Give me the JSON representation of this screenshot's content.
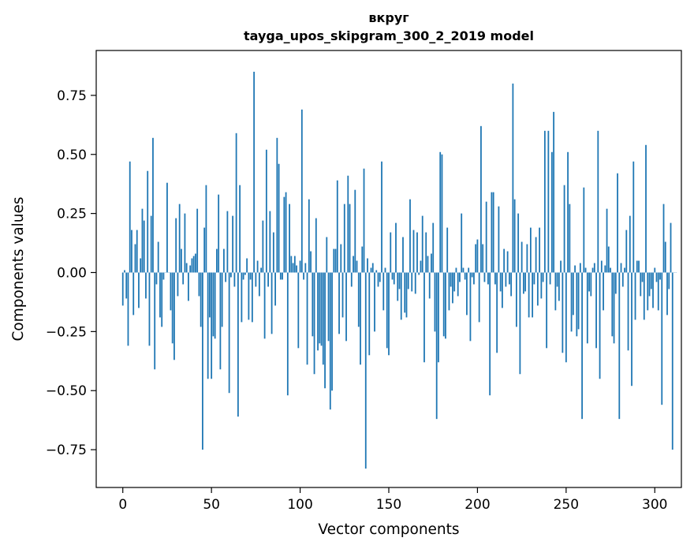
{
  "chart_data": {
    "type": "bar",
    "title": "вкруг",
    "subtitle": "tayga_upos_skipgram_300_2_2019 model",
    "xlabel": "Vector components",
    "ylabel": "Components values",
    "xlim": [
      -15,
      315
    ],
    "ylim": [
      -0.91,
      0.94
    ],
    "xticks": [
      0,
      50,
      100,
      150,
      200,
      250,
      300
    ],
    "xtick_labels": [
      "0",
      "50",
      "100",
      "150",
      "200",
      "250",
      "300"
    ],
    "yticks": [
      -0.75,
      -0.5,
      -0.25,
      0.0,
      0.25,
      0.5,
      0.75
    ],
    "ytick_labels": [
      "−0.75",
      "−0.50",
      "−0.25",
      "0.00",
      "0.25",
      "0.50",
      "0.75"
    ],
    "grid": false,
    "bar_color": "#1f77b4",
    "values": [
      -0.14,
      0.01,
      -0.11,
      -0.31,
      0.47,
      0.18,
      -0.18,
      0.12,
      0.18,
      -0.15,
      0.06,
      0.27,
      0.22,
      -0.11,
      0.43,
      -0.31,
      0.24,
      0.57,
      -0.41,
      -0.05,
      0.13,
      -0.19,
      -0.23,
      -0.03,
      0.0,
      0.38,
      0.0,
      -0.16,
      -0.3,
      -0.37,
      0.23,
      -0.1,
      0.29,
      0.1,
      -0.05,
      0.25,
      0.04,
      -0.12,
      0.03,
      0.06,
      0.07,
      0.08,
      0.27,
      -0.1,
      -0.23,
      -0.75,
      0.19,
      0.37,
      -0.45,
      -0.19,
      -0.45,
      -0.27,
      -0.28,
      0.1,
      0.33,
      -0.41,
      -0.23,
      0.1,
      -0.04,
      0.26,
      -0.51,
      -0.02,
      0.24,
      -0.06,
      0.59,
      -0.61,
      0.37,
      -0.21,
      -0.03,
      -0.01,
      0.06,
      -0.2,
      -0.03,
      -0.21,
      0.85,
      -0.06,
      0.05,
      -0.1,
      0.02,
      0.22,
      -0.28,
      0.52,
      -0.06,
      0.26,
      -0.26,
      0.17,
      -0.14,
      0.57,
      0.46,
      -0.03,
      -0.03,
      0.32,
      0.34,
      -0.52,
      0.29,
      0.07,
      0.04,
      0.07,
      0.03,
      -0.32,
      0.05,
      0.69,
      -0.03,
      0.04,
      -0.39,
      0.31,
      0.09,
      -0.27,
      -0.43,
      0.23,
      -0.33,
      -0.3,
      -0.31,
      -0.39,
      -0.49,
      0.15,
      -0.29,
      -0.58,
      -0.5,
      0.1,
      0.1,
      0.39,
      -0.26,
      0.12,
      -0.19,
      0.29,
      -0.29,
      0.41,
      0.29,
      -0.06,
      0.07,
      0.35,
      0.05,
      -0.23,
      -0.39,
      0.11,
      0.44,
      -0.83,
      0.06,
      -0.35,
      0.02,
      0.04,
      -0.25,
      0.01,
      -0.06,
      -0.04,
      0.47,
      -0.16,
      0.02,
      -0.32,
      -0.35,
      0.17,
      -0.03,
      -0.05,
      0.21,
      -0.12,
      -0.07,
      -0.2,
      0.15,
      -0.17,
      -0.19,
      -0.07,
      0.31,
      -0.08,
      0.18,
      -0.09,
      0.17,
      -0.01,
      0.05,
      0.24,
      -0.38,
      0.17,
      0.07,
      -0.11,
      0.08,
      0.21,
      -0.25,
      -0.62,
      -0.38,
      0.51,
      0.5,
      -0.27,
      -0.28,
      0.19,
      -0.16,
      -0.06,
      -0.13,
      -0.08,
      0.02,
      -0.1,
      -0.04,
      0.25,
      0.02,
      -0.03,
      -0.18,
      0.02,
      -0.29,
      -0.02,
      -0.05,
      0.12,
      0.14,
      -0.21,
      0.62,
      0.12,
      -0.04,
      0.3,
      -0.05,
      -0.52,
      0.34,
      0.34,
      -0.05,
      -0.34,
      0.28,
      -0.08,
      -0.15,
      0.1,
      -0.06,
      0.09,
      -0.05,
      -0.1,
      0.8,
      0.31,
      -0.23,
      0.25,
      -0.43,
      0.13,
      -0.09,
      -0.08,
      0.12,
      -0.19,
      0.19,
      -0.19,
      -0.05,
      0.15,
      -0.14,
      0.19,
      -0.11,
      -0.04,
      0.6,
      -0.32,
      0.6,
      -0.05,
      0.51,
      0.68,
      -0.16,
      -0.06,
      -0.12,
      0.05,
      -0.34,
      0.37,
      -0.38,
      0.51,
      0.29,
      -0.25,
      -0.18,
      0.03,
      -0.27,
      -0.24,
      0.04,
      -0.62,
      0.36,
      0.02,
      -0.3,
      -0.08,
      -0.1,
      0.02,
      0.04,
      -0.32,
      0.6,
      -0.45,
      0.05,
      -0.16,
      0.03,
      0.27,
      0.11,
      0.02,
      -0.27,
      -0.3,
      -0.09,
      0.42,
      -0.62,
      0.04,
      -0.06,
      0.02,
      0.18,
      -0.33,
      0.24,
      -0.48,
      0.47,
      -0.2,
      0.05,
      0.05,
      -0.1,
      -0.04,
      -0.2,
      0.54,
      -0.16,
      -0.1,
      -0.07,
      -0.15,
      0.02,
      -0.04,
      -0.16,
      -0.03,
      -0.56,
      0.29,
      0.13,
      -0.18,
      -0.07,
      0.21,
      -0.75,
      0.0,
      0.0
    ]
  }
}
